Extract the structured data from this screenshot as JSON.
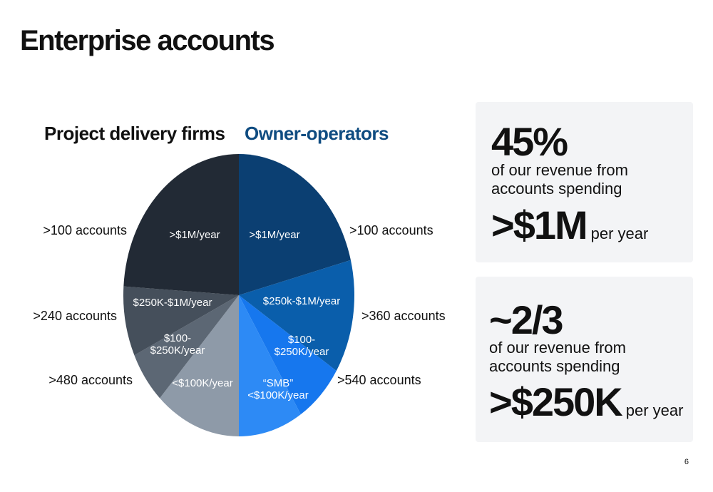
{
  "title": "Enterprise accounts",
  "chart_data": {
    "type": "pie",
    "group_labels": [
      "Project delivery firms",
      "Owner-operators"
    ],
    "labels": [
      [
        ">$1M/year"
      ],
      [
        "$250k-$1M/year"
      ],
      [
        "$100-",
        "$250K/year"
      ],
      [
        "“SMB”",
        "<$100K/year"
      ],
      [
        "<$100K/year"
      ],
      [
        "$100-",
        "$250K/year"
      ],
      [
        "$250K-$1M/year"
      ],
      [
        ">$1M/year"
      ]
    ],
    "values": [
      21,
      13,
      7,
      9,
      12,
      6,
      8,
      24
    ],
    "colors": [
      "#0b3f72",
      "#0a5eab",
      "#1677ee",
      "#2d8af5",
      "#8e9aa8",
      "#5c6774",
      "#454f5b",
      "#222a35"
    ],
    "account_labels": [
      ">100 accounts",
      ">360 accounts",
      ">540 accounts",
      ">480 accounts",
      ">240 accounts",
      ">100 accounts"
    ]
  },
  "callouts": [
    {
      "headline": "45%",
      "lines": [
        "of our revenue from",
        "accounts spending"
      ],
      "amount": ">$1M",
      "suffix": "per year"
    },
    {
      "headline": "~2/3",
      "lines": [
        "of our revenue from",
        "accounts spending"
      ],
      "amount": ">$250K",
      "suffix": "per year"
    }
  ],
  "page_number": "6"
}
